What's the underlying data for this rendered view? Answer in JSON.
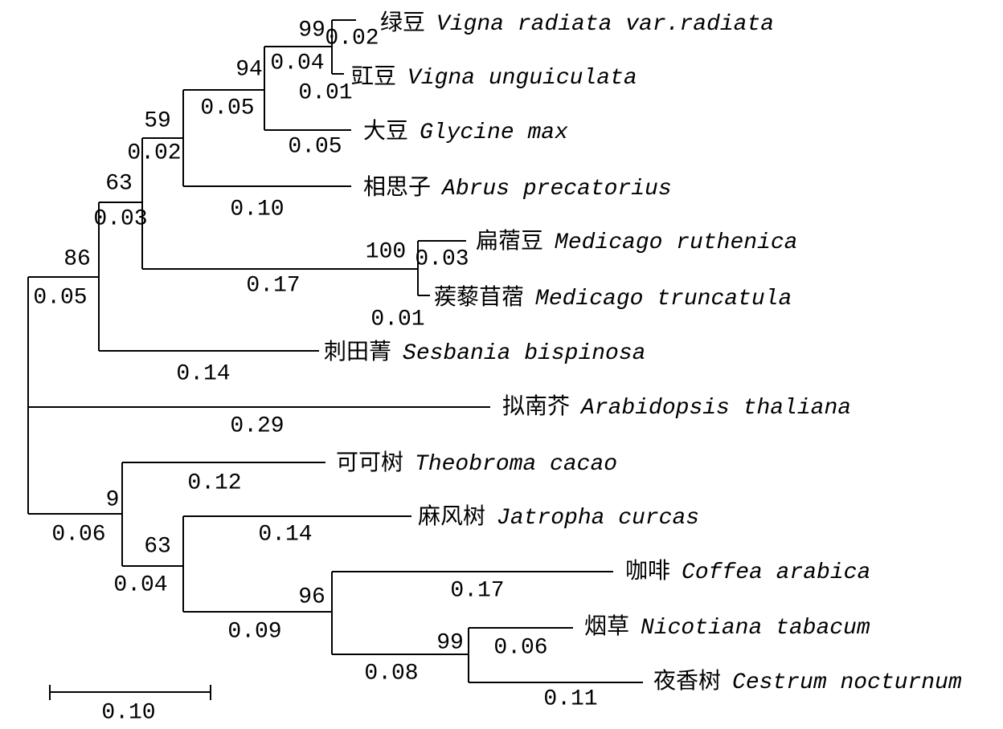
{
  "leaves": [
    {
      "cn": "绿豆",
      "latin": "Vigna radiata var.radiata",
      "branch": "0.02"
    },
    {
      "cn": "豇豆",
      "latin": "Vigna unguiculata",
      "branch": "0.01"
    },
    {
      "cn": "大豆",
      "latin": "Glycine max",
      "branch": "0.05"
    },
    {
      "cn": "相思子",
      "latin": "Abrus precatorius",
      "branch": "0.10"
    },
    {
      "cn": "扁蓿豆",
      "latin": "Medicago ruthenica",
      "branch": "0.03"
    },
    {
      "cn": "蒺藜苜蓿",
      "latin": "Medicago truncatula",
      "branch": "0.01"
    },
    {
      "cn": "刺田菁",
      "latin": "Sesbania bispinosa",
      "branch": "0.14"
    },
    {
      "cn": "拟南芥",
      "latin": "Arabidopsis thaliana",
      "branch": "0.29"
    },
    {
      "cn": "可可树",
      "latin": "Theobroma cacao",
      "branch": "0.12"
    },
    {
      "cn": "麻风树",
      "latin": "Jatropha curcas",
      "branch": "0.14"
    },
    {
      "cn": "咖啡",
      "latin": "Coffea arabica",
      "branch": "0.17"
    },
    {
      "cn": "烟草",
      "latin": "Nicotiana tabacum",
      "branch": "0.06"
    },
    {
      "cn": "夜香树",
      "latin": "Cestrum nocturnum",
      "branch": "0.11"
    }
  ],
  "nodes": [
    {
      "bootstrap": "99",
      "branch": "0.04"
    },
    {
      "bootstrap": "94",
      "branch": "0.05"
    },
    {
      "bootstrap": "59",
      "branch": "0.02"
    },
    {
      "bootstrap": "100",
      "branch": "0.17"
    },
    {
      "bootstrap": "63",
      "branch": "0.03"
    },
    {
      "bootstrap": "86",
      "branch": "0.05"
    },
    {
      "bootstrap": "9",
      "branch": "0.06"
    },
    {
      "bootstrap": "63",
      "branch": "0.04"
    },
    {
      "bootstrap": "96",
      "branch": "0.09"
    },
    {
      "bootstrap": "99",
      "branch": "0.08"
    }
  ],
  "scale_bar": "0.10"
}
